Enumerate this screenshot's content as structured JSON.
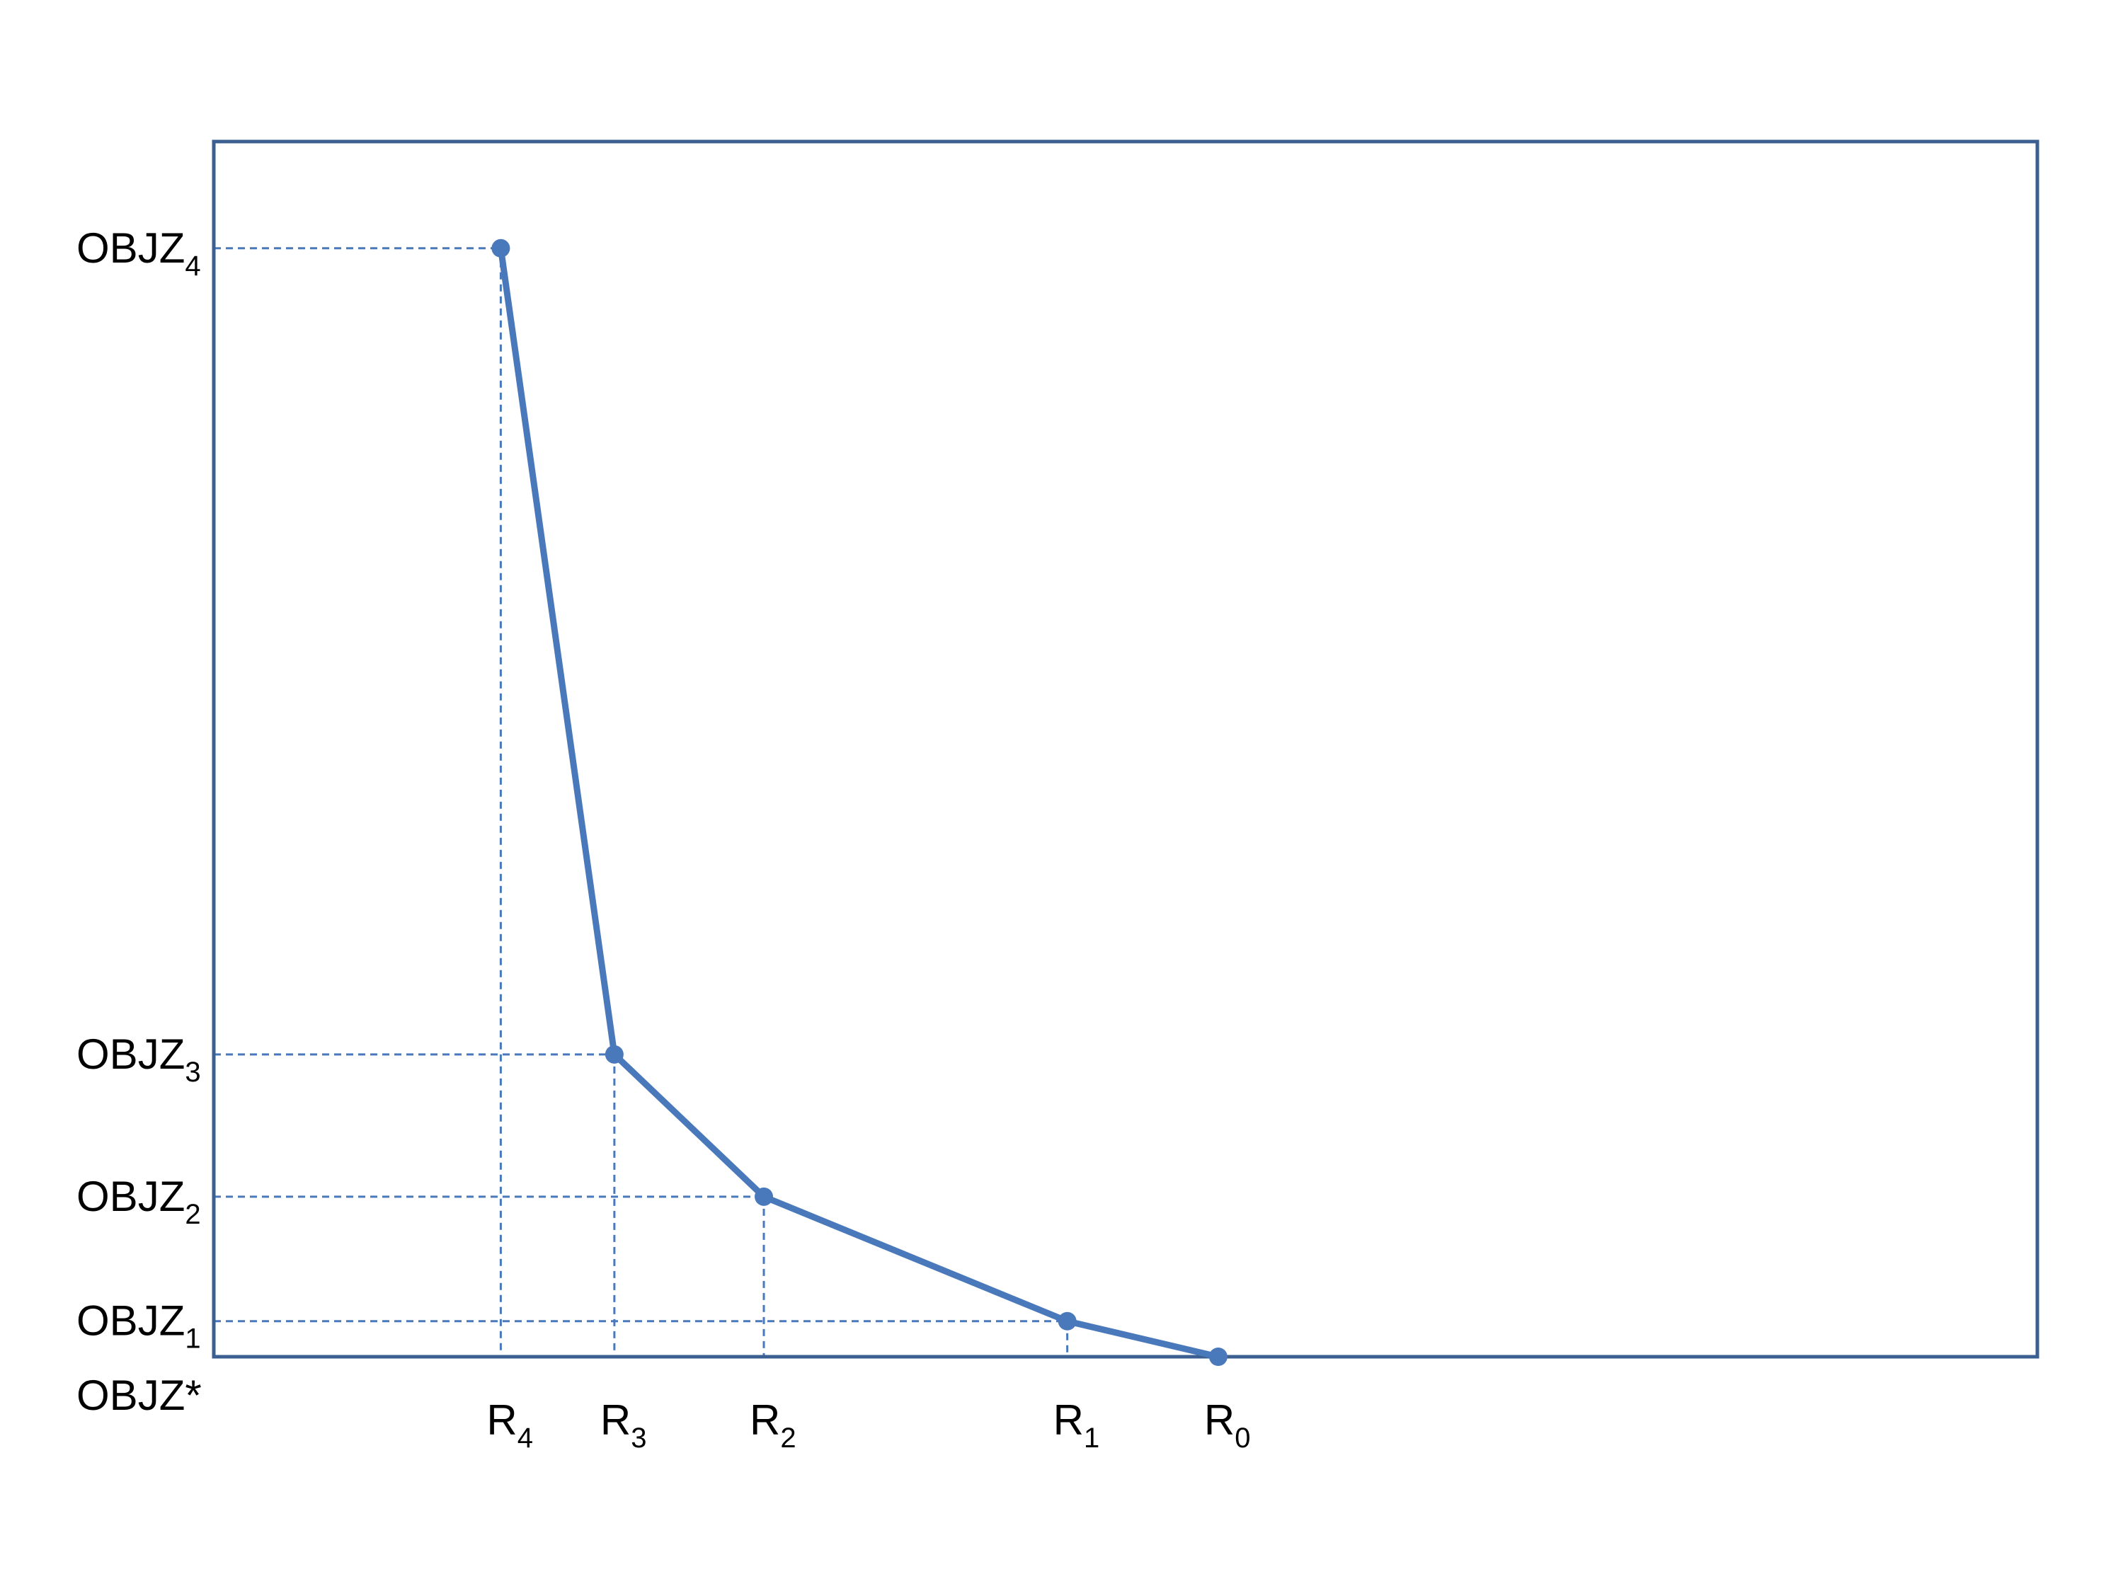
{
  "chart_data": {
    "type": "line",
    "title": "",
    "xlabel": "",
    "ylabel": "",
    "grid": false,
    "legend": "none",
    "colors": {
      "line": "#4a79bb",
      "marker": "#4a79bb",
      "guide": "#4a79bb",
      "frame": "#3b5f90",
      "text": "#000000"
    },
    "xlim": [
      0,
      12.2
    ],
    "ylim": [
      0,
      8.2
    ],
    "series": [
      {
        "points": [
          {
            "x": 1.92,
            "y": 7.48
          },
          {
            "x": 2.68,
            "y": 2.04
          },
          {
            "x": 3.68,
            "y": 1.08
          },
          {
            "x": 5.71,
            "y": 0.24
          },
          {
            "x": 6.72,
            "y": 0.0
          }
        ]
      }
    ],
    "x_ticks": [
      {
        "value": 1.92,
        "base": "R",
        "sub": "4"
      },
      {
        "value": 2.68,
        "base": "R",
        "sub": "3"
      },
      {
        "value": 3.68,
        "base": "R",
        "sub": "2"
      },
      {
        "value": 5.71,
        "base": "R",
        "sub": "1"
      },
      {
        "value": 6.72,
        "base": "R",
        "sub": "0"
      }
    ],
    "y_ticks": [
      {
        "value": 7.48,
        "base": "OBJZ",
        "sub": "4"
      },
      {
        "value": 2.04,
        "base": "OBJZ",
        "sub": "3"
      },
      {
        "value": 1.08,
        "base": "OBJZ",
        "sub": "2"
      },
      {
        "value": 0.24,
        "base": "OBJZ",
        "sub": "1"
      },
      {
        "value": 0.0,
        "base": "OBJZ*",
        "sub": ""
      }
    ]
  }
}
